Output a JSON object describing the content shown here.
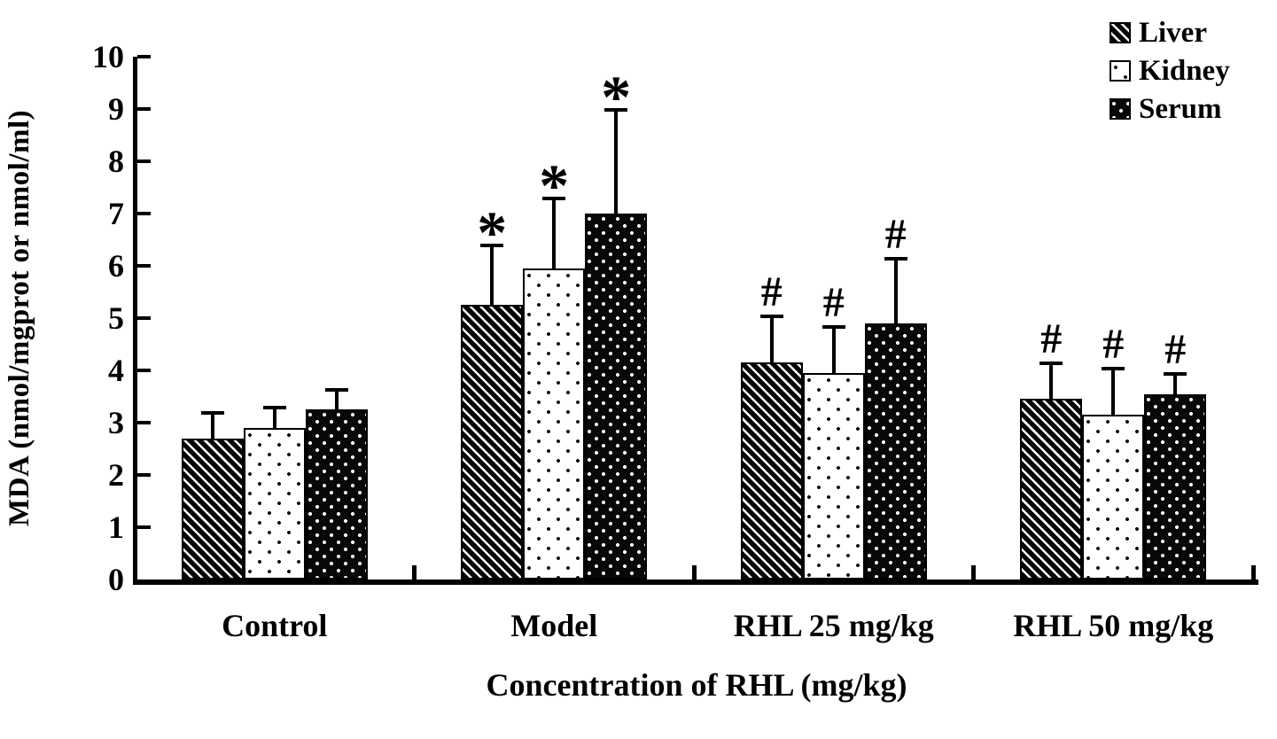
{
  "figure_background": "#ffffff",
  "ink_color": "#000000",
  "chart_data": {
    "type": "bar",
    "title": "",
    "xlabel": "Concentration of RHL (mg/kg)",
    "ylabel": "MDA (nmol/mgprot or nmol/ml)",
    "categories": [
      "Control",
      "Model",
      "RHL 25 mg/kg",
      "RHL 50 mg/kg"
    ],
    "series": [
      {
        "name": "Liver",
        "pattern": "diagonal-hatch",
        "values": [
          2.7,
          5.25,
          4.15,
          3.45
        ],
        "error_tops": [
          3.2,
          6.4,
          5.05,
          4.15
        ],
        "annotations": [
          "",
          "*",
          "#",
          "#"
        ]
      },
      {
        "name": "Kidney",
        "pattern": "white-dots",
        "values": [
          2.9,
          5.95,
          3.95,
          3.15
        ],
        "error_tops": [
          3.3,
          7.3,
          4.85,
          4.05
        ],
        "annotations": [
          "",
          "*",
          "#",
          "#"
        ]
      },
      {
        "name": "Serum",
        "pattern": "black-dots",
        "values": [
          3.25,
          7.0,
          4.9,
          3.55
        ],
        "error_tops": [
          3.65,
          9.0,
          6.15,
          3.95
        ],
        "annotations": [
          "",
          "*",
          "#",
          "#"
        ]
      }
    ],
    "ylim": [
      0,
      10
    ],
    "yticks": [
      0,
      1,
      2,
      3,
      4,
      5,
      6,
      7,
      8,
      9,
      10
    ],
    "legend": [
      "Liver",
      "Kidney",
      "Serum"
    ],
    "legend_position": "top-right",
    "grid": false,
    "error_bars": "upper",
    "significance_markers": {
      "model_groups": "*",
      "rhl_groups": "#"
    }
  }
}
